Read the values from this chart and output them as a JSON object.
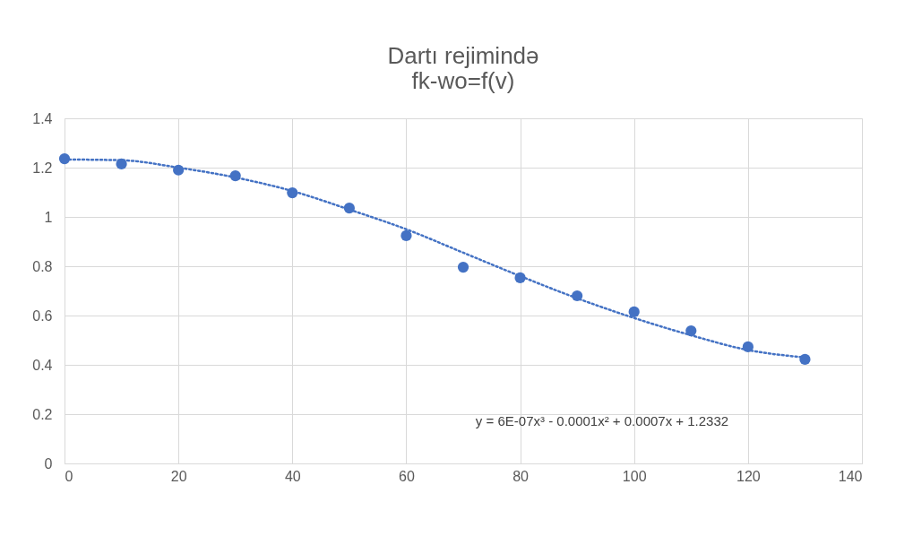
{
  "chart_data": {
    "type": "scatter",
    "title": "Dartı rejimində\nfk-wo=f(v)",
    "x": [
      0,
      10,
      20,
      30,
      40,
      50,
      60,
      70,
      80,
      90,
      100,
      110,
      120,
      130
    ],
    "series": [
      {
        "color": "#4472c4",
        "marker": "circle",
        "values": [
          1.236,
          1.215,
          1.19,
          1.167,
          1.098,
          1.036,
          0.924,
          0.796,
          0.753,
          0.68,
          0.615,
          0.538,
          0.473,
          0.422
        ]
      },
      {
        "type": "line",
        "color": "#4472c4",
        "line_style": "dotted",
        "marker": "none",
        "x": [
          0,
          10,
          20,
          30,
          40,
          50,
          60,
          70,
          80,
          90,
          100,
          110,
          120,
          130
        ],
        "values": [
          1.233,
          1.23,
          1.2,
          1.16,
          1.105,
          1.03,
          0.95,
          0.855,
          0.76,
          0.67,
          0.59,
          0.52,
          0.46,
          0.43
        ]
      }
    ],
    "xlim": [
      0,
      140
    ],
    "xticks": [
      0,
      20,
      40,
      60,
      80,
      100,
      120,
      140
    ],
    "ylim": [
      0,
      1.4
    ],
    "yticks": [
      0,
      0.2,
      0.4,
      0.6,
      0.8,
      1,
      1.2,
      1.4
    ],
    "grid": true,
    "legend": false,
    "annotations": [
      "y = 6E-07x³ - 0.0001x² + 0.0007x + 1.2332"
    ]
  }
}
